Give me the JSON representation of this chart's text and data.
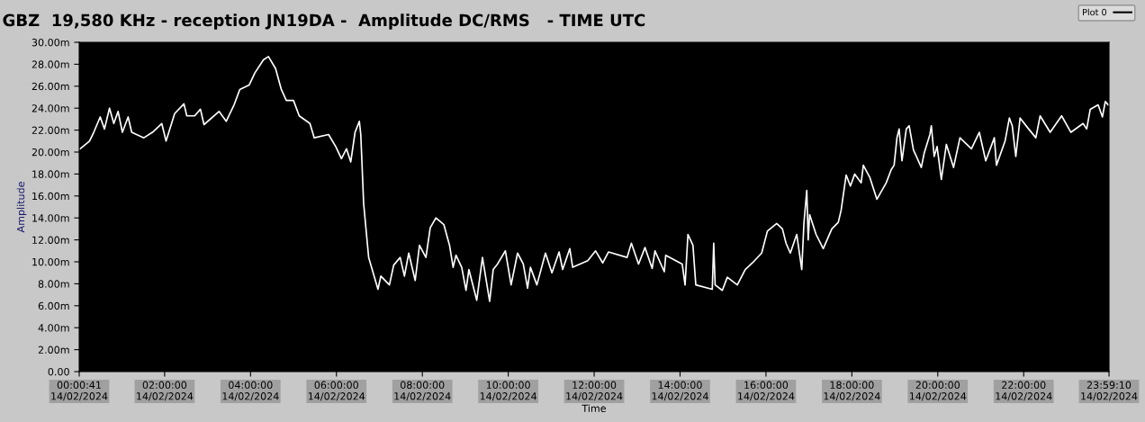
{
  "chart_data": {
    "type": "line",
    "title": "GBZ  19,580 KHz - reception JN19DA -  Amplitude DC/RMS   - TIME UTC",
    "xlabel": "Time",
    "ylabel": "Amplitude",
    "x": [
      "2024-02-14T00:02",
      "2024-02-14T00:15",
      "2024-02-14T00:21",
      "2024-02-14T00:30",
      "2024-02-14T00:36",
      "2024-02-14T00:43",
      "2024-02-14T00:49",
      "2024-02-14T00:55",
      "2024-02-14T01:01",
      "2024-02-14T01:09",
      "2024-02-14T01:14",
      "2024-02-14T01:31",
      "2024-02-14T01:43",
      "2024-02-14T01:56",
      "2024-02-14T02:02",
      "2024-02-14T02:14",
      "2024-02-14T02:27",
      "2024-02-14T02:31",
      "2024-02-14T02:42",
      "2024-02-14T02:50",
      "2024-02-14T02:55",
      "2024-02-14T03:16",
      "2024-02-14T03:26",
      "2024-02-14T03:37",
      "2024-02-14T03:45",
      "2024-02-14T03:58",
      "2024-02-14T04:06",
      "2024-02-14T04:18",
      "2024-02-14T04:25",
      "2024-02-14T04:35",
      "2024-02-14T04:43",
      "2024-02-14T04:50",
      "2024-02-14T05:00",
      "2024-02-14T05:08",
      "2024-02-14T05:23",
      "2024-02-14T05:29",
      "2024-02-14T05:49",
      "2024-02-14T05:59",
      "2024-02-14T06:07",
      "2024-02-14T06:14",
      "2024-02-14T06:20",
      "2024-02-14T06:26",
      "2024-02-14T06:32",
      "2024-02-14T06:34",
      "2024-02-14T06:38",
      "2024-02-14T06:45",
      "2024-02-14T06:49",
      "2024-02-14T06:58",
      "2024-02-14T07:02",
      "2024-02-14T07:14",
      "2024-02-14T07:20",
      "2024-02-14T07:29",
      "2024-02-14T07:35",
      "2024-02-14T07:41",
      "2024-02-14T07:50",
      "2024-02-14T07:56",
      "2024-02-14T08:05",
      "2024-02-14T08:11",
      "2024-02-14T08:19",
      "2024-02-14T08:30",
      "2024-02-14T08:38",
      "2024-02-14T08:43",
      "2024-02-14T08:47",
      "2024-02-14T08:55",
      "2024-02-14T09:01",
      "2024-02-14T09:05",
      "2024-02-14T09:16",
      "2024-02-14T09:24",
      "2024-02-14T09:34",
      "2024-02-14T09:39",
      "2024-02-14T09:45",
      "2024-02-14T09:56",
      "2024-02-14T10:04",
      "2024-02-14T10:13",
      "2024-02-14T10:21",
      "2024-02-14T10:27",
      "2024-02-14T10:31",
      "2024-02-14T10:40",
      "2024-02-14T10:52",
      "2024-02-14T11:01",
      "2024-02-14T11:11",
      "2024-02-14T11:16",
      "2024-02-14T11:26",
      "2024-02-14T11:30",
      "2024-02-14T11:51",
      "2024-02-14T12:02",
      "2024-02-14T12:12",
      "2024-02-14T12:20",
      "2024-02-14T12:46",
      "2024-02-14T12:52",
      "2024-02-14T13:02",
      "2024-02-14T13:11",
      "2024-02-14T13:21",
      "2024-02-14T13:25",
      "2024-02-14T13:38",
      "2024-02-14T13:40",
      "2024-02-14T14:03",
      "2024-02-14T14:07",
      "2024-02-14T14:11",
      "2024-02-14T14:18",
      "2024-02-14T14:22",
      "2024-02-14T14:45",
      "2024-02-14T14:47",
      "2024-02-14T14:49",
      "2024-02-14T14:59",
      "2024-02-14T15:06",
      "2024-02-14T15:20",
      "2024-02-14T15:31",
      "2024-02-14T15:41",
      "2024-02-14T15:54",
      "2024-02-14T16:02",
      "2024-02-14T16:15",
      "2024-02-14T16:23",
      "2024-02-14T16:28",
      "2024-02-14T16:34",
      "2024-02-14T16:43",
      "2024-02-14T16:50",
      "2024-02-14T16:53",
      "2024-02-14T16:57",
      "2024-02-14T16:59",
      "2024-02-14T17:01",
      "2024-02-14T17:10",
      "2024-02-14T17:20",
      "2024-02-14T17:32",
      "2024-02-14T17:41",
      "2024-02-14T17:45",
      "2024-02-14T17:52",
      "2024-02-14T17:58",
      "2024-02-14T18:04",
      "2024-02-14T18:13",
      "2024-02-14T18:16",
      "2024-02-14T18:25",
      "2024-02-14T18:35",
      "2024-02-14T18:48",
      "2024-02-14T18:55",
      "2024-02-14T18:59",
      "2024-02-14T19:03",
      "2024-02-14T19:06",
      "2024-02-14T19:10",
      "2024-02-14T19:16",
      "2024-02-14T19:20",
      "2024-02-14T19:26",
      "2024-02-14T19:37",
      "2024-02-14T19:41",
      "2024-02-14T19:49",
      "2024-02-14T19:51",
      "2024-02-14T19:55",
      "2024-02-14T19:59",
      "2024-02-14T20:05",
      "2024-02-14T20:12",
      "2024-02-14T20:22",
      "2024-02-14T20:31",
      "2024-02-14T20:47",
      "2024-02-14T20:58",
      "2024-02-14T21:07",
      "2024-02-14T21:19",
      "2024-02-14T21:22",
      "2024-02-14T21:34",
      "2024-02-14T21:40",
      "2024-02-14T21:44",
      "2024-02-14T21:49",
      "2024-02-14T21:55",
      "2024-02-14T22:07",
      "2024-02-14T22:17",
      "2024-02-14T22:23",
      "2024-02-14T22:37",
      "2024-02-14T22:53",
      "2024-02-14T23:06",
      "2024-02-14T23:23",
      "2024-02-14T23:28",
      "2024-02-14T23:33",
      "2024-02-14T23:44",
      "2024-02-14T23:50",
      "2024-02-14T23:54",
      "2024-02-14T23:58"
    ],
    "series": [
      {
        "name": "Plot 0",
        "color": "#ffffff",
        "values": [
          20.3,
          21.0,
          21.8,
          23.2,
          22.1,
          24.0,
          22.6,
          23.7,
          21.8,
          23.2,
          21.8,
          21.3,
          21.8,
          22.6,
          21.0,
          23.5,
          24.4,
          23.3,
          23.3,
          23.9,
          22.5,
          23.7,
          22.8,
          24.3,
          25.7,
          26.1,
          27.2,
          28.4,
          28.7,
          27.6,
          25.7,
          24.7,
          24.7,
          23.3,
          22.6,
          21.3,
          21.6,
          20.5,
          19.4,
          20.3,
          19.1,
          21.8,
          22.8,
          21.6,
          15.3,
          10.4,
          9.5,
          7.5,
          8.7,
          7.9,
          9.7,
          10.4,
          8.7,
          10.8,
          8.3,
          11.5,
          10.4,
          13.1,
          14.0,
          13.4,
          11.5,
          9.5,
          10.6,
          9.5,
          7.4,
          9.3,
          6.5,
          10.4,
          6.4,
          9.3,
          9.8,
          11.0,
          7.9,
          10.8,
          9.8,
          7.6,
          9.5,
          7.9,
          10.8,
          9.0,
          10.9,
          9.3,
          11.2,
          9.5,
          10.1,
          11.0,
          9.9,
          10.9,
          10.4,
          11.7,
          9.8,
          11.3,
          9.4,
          11.0,
          9.1,
          10.6,
          9.8,
          7.9,
          12.5,
          11.5,
          7.9,
          7.5,
          11.7,
          7.9,
          7.4,
          8.6,
          7.9,
          9.3,
          9.9,
          10.8,
          12.8,
          13.5,
          13.0,
          11.7,
          10.8,
          12.5,
          9.3,
          13.5,
          16.5,
          12.0,
          14.3,
          12.5,
          11.2,
          13.0,
          13.6,
          14.7,
          17.9,
          16.9,
          18.0,
          17.2,
          18.8,
          17.7,
          15.7,
          17.2,
          18.4,
          18.8,
          21.3,
          22.1,
          19.2,
          22.1,
          22.4,
          20.2,
          18.6,
          19.9,
          21.6,
          22.4,
          19.6,
          20.5,
          17.5,
          20.7,
          18.6,
          21.3,
          20.3,
          21.8,
          19.2,
          21.3,
          18.8,
          21.0,
          23.1,
          22.4,
          19.6,
          23.1,
          22.1,
          21.3,
          23.3,
          21.8,
          23.3,
          21.8,
          22.6,
          22.1,
          23.9,
          24.3,
          23.2,
          24.6,
          24.3
        ]
      }
    ],
    "xlim": [
      "2024-02-14T00:00:41",
      "2024-02-14T23:59:10"
    ],
    "xticks": [
      {
        "value": "2024-02-14T00:00:41",
        "label": "00:00:41\n14/02/2024"
      },
      {
        "value": "2024-02-14T02:00",
        "label": "02:00:00\n14/02/2024"
      },
      {
        "value": "2024-02-14T04:00",
        "label": "04:00:00\n14/02/2024"
      },
      {
        "value": "2024-02-14T06:00",
        "label": "06:00:00\n14/02/2024"
      },
      {
        "value": "2024-02-14T08:00",
        "label": "08:00:00\n14/02/2024"
      },
      {
        "value": "2024-02-14T10:00",
        "label": "10:00:00\n14/02/2024"
      },
      {
        "value": "2024-02-14T12:00",
        "label": "12:00:00\n14/02/2024"
      },
      {
        "value": "2024-02-14T14:00",
        "label": "14:00:00\n14/02/2024"
      },
      {
        "value": "2024-02-14T16:00",
        "label": "16:00:00\n14/02/2024"
      },
      {
        "value": "2024-02-14T18:00",
        "label": "18:00:00\n14/02/2024"
      },
      {
        "value": "2024-02-14T20:00",
        "label": "20:00:00\n14/02/2024"
      },
      {
        "value": "2024-02-14T22:00",
        "label": "22:00:00\n14/02/2024"
      },
      {
        "value": "2024-02-14T23:59:10",
        "label": "23:59:10\n14/02/2024"
      }
    ],
    "ylim": [
      0,
      30
    ],
    "yticks": [
      {
        "value": 0,
        "label": "0.00"
      },
      {
        "value": 2,
        "label": "2.00m"
      },
      {
        "value": 4,
        "label": "4.00m"
      },
      {
        "value": 6,
        "label": "6.00m"
      },
      {
        "value": 8,
        "label": "8.00m"
      },
      {
        "value": 10,
        "label": "10.00m"
      },
      {
        "value": 12,
        "label": "12.00m"
      },
      {
        "value": 14,
        "label": "14.00m"
      },
      {
        "value": 16,
        "label": "16.00m"
      },
      {
        "value": 18,
        "label": "18.00m"
      },
      {
        "value": 20,
        "label": "20.00m"
      },
      {
        "value": 22,
        "label": "22.00m"
      },
      {
        "value": 24,
        "label": "24.00m"
      },
      {
        "value": 26,
        "label": "26.00m"
      },
      {
        "value": 28,
        "label": "28.00m"
      },
      {
        "value": 30,
        "label": "30.00m"
      }
    ],
    "grid": false,
    "legend": "top right",
    "marker": "none",
    "line_style": "solid"
  }
}
